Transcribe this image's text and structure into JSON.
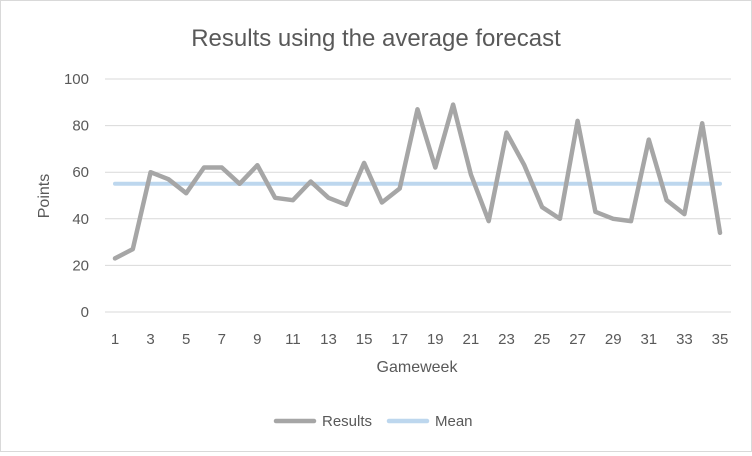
{
  "chart_data": {
    "type": "line",
    "title": "Results using the average forecast",
    "xlabel": "Gameweek",
    "ylabel": "Points",
    "ylim": [
      0,
      100
    ],
    "yticks": [
      0,
      20,
      40,
      60,
      80,
      100
    ],
    "grid": true,
    "legend_position": "bottom",
    "x": [
      1,
      2,
      3,
      4,
      5,
      6,
      7,
      8,
      9,
      10,
      11,
      12,
      13,
      14,
      15,
      16,
      17,
      18,
      19,
      20,
      21,
      22,
      23,
      24,
      25,
      26,
      27,
      28,
      29,
      30,
      31,
      32,
      33,
      34,
      35
    ],
    "xtick_labels": [
      "1",
      "3",
      "5",
      "7",
      "9",
      "11",
      "13",
      "15",
      "17",
      "19",
      "21",
      "23",
      "25",
      "27",
      "29",
      "31",
      "33",
      "35"
    ],
    "series": [
      {
        "name": "Results",
        "color": "#a6a6a6",
        "values": [
          23,
          27,
          60,
          57,
          51,
          62,
          62,
          55,
          63,
          49,
          48,
          56,
          49,
          46,
          64,
          47,
          53,
          87,
          62,
          89,
          59,
          39,
          77,
          63,
          45,
          40,
          82,
          43,
          40,
          39,
          74,
          48,
          42,
          81,
          34
        ]
      },
      {
        "name": "Mean",
        "color": "#bdd7ee",
        "values": [
          55,
          55,
          55,
          55,
          55,
          55,
          55,
          55,
          55,
          55,
          55,
          55,
          55,
          55,
          55,
          55,
          55,
          55,
          55,
          55,
          55,
          55,
          55,
          55,
          55,
          55,
          55,
          55,
          55,
          55,
          55,
          55,
          55,
          55,
          55
        ]
      }
    ]
  }
}
